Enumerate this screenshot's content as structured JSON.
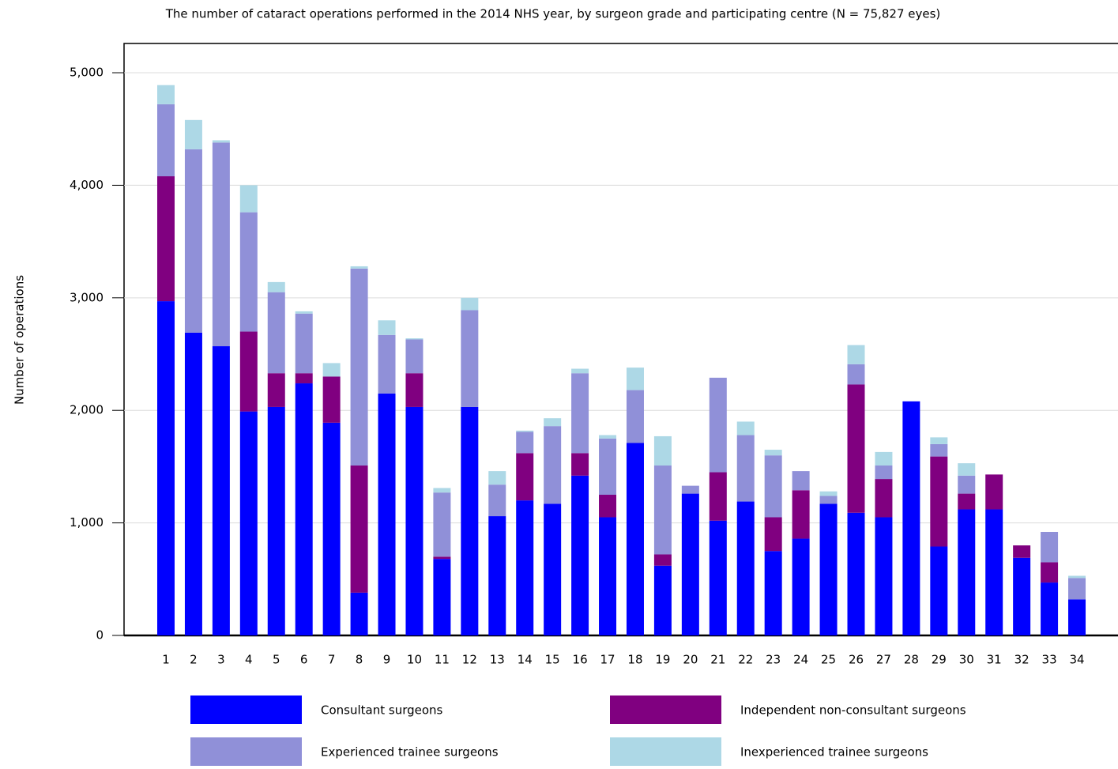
{
  "chart_data": {
    "type": "stacked_bar",
    "title": "The number of cataract operations performed in the 2014 NHS year, by surgeon grade and participating centre (N = 75,827 eyes)",
    "y_label": "Number of operations",
    "categories": [
      "1",
      "2",
      "3",
      "4",
      "5",
      "6",
      "7",
      "8",
      "9",
      "10",
      "11",
      "12",
      "13",
      "14",
      "15",
      "16",
      "17",
      "18",
      "19",
      "20",
      "21",
      "22",
      "23",
      "24",
      "25",
      "26",
      "27",
      "28",
      "29",
      "30",
      "31",
      "32",
      "33",
      "34"
    ],
    "series": [
      {
        "name": "Consultant surgeons",
        "color": "#0000ff",
        "values": [
          2970,
          2690,
          2570,
          1990,
          2030,
          2240,
          1890,
          380,
          2150,
          2030,
          680,
          2030,
          1060,
          1200,
          1170,
          1420,
          1050,
          1710,
          620,
          1260,
          1020,
          1190,
          750,
          860,
          1170,
          1090,
          1050,
          2080,
          790,
          1120,
          1120,
          690,
          470,
          320
        ]
      },
      {
        "name": "Independent non-consultant surgeons",
        "color": "#800080",
        "values": [
          1110,
          0,
          0,
          710,
          300,
          90,
          410,
          1130,
          0,
          300,
          20,
          0,
          0,
          420,
          0,
          200,
          200,
          0,
          100,
          0,
          430,
          0,
          300,
          430,
          0,
          1140,
          340,
          0,
          800,
          140,
          310,
          110,
          180,
          0
        ]
      },
      {
        "name": "Experienced trainee surgeons",
        "color": "#9090d8",
        "values": [
          640,
          1630,
          1810,
          1060,
          720,
          530,
          0,
          1750,
          520,
          300,
          570,
          860,
          280,
          190,
          690,
          710,
          500,
          470,
          790,
          70,
          840,
          590,
          550,
          170,
          70,
          180,
          120,
          0,
          110,
          160,
          0,
          0,
          270,
          190
        ]
      },
      {
        "name": "Inexperienced trainee surgeons",
        "color": "#add8e6",
        "values": [
          170,
          260,
          20,
          240,
          90,
          20,
          120,
          20,
          130,
          10,
          40,
          110,
          120,
          10,
          70,
          40,
          30,
          200,
          260,
          0,
          0,
          120,
          50,
          0,
          40,
          170,
          120,
          0,
          60,
          110,
          0,
          0,
          0,
          20
        ]
      }
    ],
    "ylim": [
      0,
      5260
    ],
    "yticks": [
      0,
      {
        "value": 1000,
        "label": "1,000"
      },
      {
        "value": 2000,
        "label": "2,000"
      },
      {
        "value": 3000,
        "label": "3,000"
      },
      {
        "value": 4000,
        "label": "4,000"
      },
      {
        "value": 5000,
        "label": "5,000"
      }
    ],
    "grid": true
  }
}
